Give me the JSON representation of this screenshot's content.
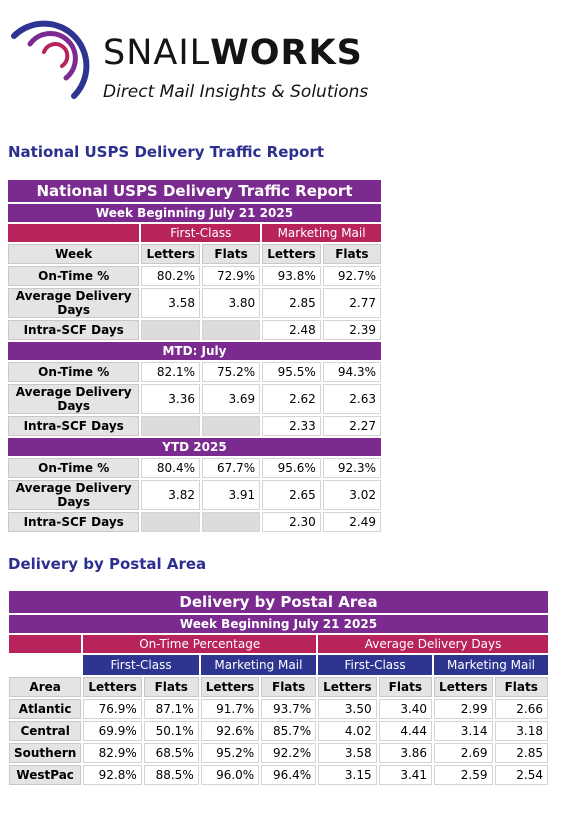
{
  "brand": {
    "name_light": "SNAIL",
    "name_bold": "WORKS",
    "tagline": "Direct Mail Insights & Solutions",
    "colors": {
      "purple": "#7b2a8f",
      "navy": "#2d3591",
      "crimson": "#b9235c",
      "heading": "#2b2f8f"
    }
  },
  "national": {
    "heading": "National USPS Delivery Traffic Report",
    "title": "National USPS Delivery Traffic Report",
    "subtitle": "Week Beginning July 21 2025",
    "col_first_class": "First-Class",
    "col_marketing_mail": "Marketing Mail",
    "col_week": "Week",
    "col_letters": "Letters",
    "col_flats": "Flats",
    "weekly": [
      {
        "label": "On-Time %",
        "fc_letters": "80.2%",
        "fc_flats": "72.9%",
        "mm_letters": "93.8%",
        "mm_flats": "92.7%"
      },
      {
        "label": "Average Delivery Days",
        "fc_letters": "3.58",
        "fc_flats": "3.80",
        "mm_letters": "2.85",
        "mm_flats": "2.77"
      },
      {
        "label": "Intra-SCF Days",
        "fc_letters": "",
        "fc_flats": "",
        "mm_letters": "2.48",
        "mm_flats": "2.39"
      }
    ],
    "mtd_label": "MTD: July",
    "mtd": [
      {
        "label": "On-Time %",
        "fc_letters": "82.1%",
        "fc_flats": "75.2%",
        "mm_letters": "95.5%",
        "mm_flats": "94.3%"
      },
      {
        "label": "Average Delivery Days",
        "fc_letters": "3.36",
        "fc_flats": "3.69",
        "mm_letters": "2.62",
        "mm_flats": "2.63"
      },
      {
        "label": "Intra-SCF Days",
        "fc_letters": "",
        "fc_flats": "",
        "mm_letters": "2.33",
        "mm_flats": "2.27"
      }
    ],
    "ytd_label": "YTD 2025",
    "ytd": [
      {
        "label": "On-Time %",
        "fc_letters": "80.4%",
        "fc_flats": "67.7%",
        "mm_letters": "95.6%",
        "mm_flats": "92.3%"
      },
      {
        "label": "Average Delivery Days",
        "fc_letters": "3.82",
        "fc_flats": "3.91",
        "mm_letters": "2.65",
        "mm_flats": "3.02"
      },
      {
        "label": "Intra-SCF Days",
        "fc_letters": "",
        "fc_flats": "",
        "mm_letters": "2.30",
        "mm_flats": "2.49"
      }
    ]
  },
  "postal": {
    "heading": "Delivery by Postal Area",
    "title": "Delivery by Postal Area",
    "subtitle": "Week Beginning July 21 2025",
    "group_ontime": "On-Time Percentage",
    "group_avgdays": "Average Delivery Days",
    "col_first_class": "First-Class",
    "col_marketing_mail": "Marketing Mail",
    "col_area": "Area",
    "col_letters": "Letters",
    "col_flats": "Flats",
    "rows": [
      {
        "area": "Atlantic",
        "ot_fc_letters": "76.9%",
        "ot_fc_flats": "87.1%",
        "ot_mm_letters": "91.7%",
        "ot_mm_flats": "93.7%",
        "ad_fc_letters": "3.50",
        "ad_fc_flats": "3.40",
        "ad_mm_letters": "2.99",
        "ad_mm_flats": "2.66"
      },
      {
        "area": "Central",
        "ot_fc_letters": "69.9%",
        "ot_fc_flats": "50.1%",
        "ot_mm_letters": "92.6%",
        "ot_mm_flats": "85.7%",
        "ad_fc_letters": "4.02",
        "ad_fc_flats": "4.44",
        "ad_mm_letters": "3.14",
        "ad_mm_flats": "3.18"
      },
      {
        "area": "Southern",
        "ot_fc_letters": "82.9%",
        "ot_fc_flats": "68.5%",
        "ot_mm_letters": "95.2%",
        "ot_mm_flats": "92.2%",
        "ad_fc_letters": "3.58",
        "ad_fc_flats": "3.86",
        "ad_mm_letters": "2.69",
        "ad_mm_flats": "2.85"
      },
      {
        "area": "WestPac",
        "ot_fc_letters": "92.8%",
        "ot_fc_flats": "88.5%",
        "ot_mm_letters": "96.0%",
        "ot_mm_flats": "96.4%",
        "ad_fc_letters": "3.15",
        "ad_fc_flats": "3.41",
        "ad_mm_letters": "2.59",
        "ad_mm_flats": "2.54"
      }
    ]
  }
}
